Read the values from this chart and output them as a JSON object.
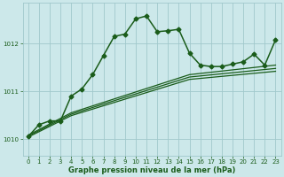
{
  "bg_color": "#cce8ea",
  "line_color": "#1a5c1a",
  "grid_color": "#a0c8cc",
  "xlabel": "Graphe pression niveau de la mer (hPa)",
  "ylabel_ticks": [
    1010,
    1011,
    1012
  ],
  "xlim": [
    -0.5,
    23.5
  ],
  "ylim": [
    1009.65,
    1012.85
  ],
  "xticks": [
    0,
    1,
    2,
    3,
    4,
    5,
    6,
    7,
    8,
    9,
    10,
    11,
    12,
    13,
    14,
    15,
    16,
    17,
    18,
    19,
    20,
    21,
    22,
    23
  ],
  "series": [
    {
      "x": [
        0,
        1,
        2,
        3,
        4,
        5,
        6,
        7,
        8,
        9,
        10,
        11,
        12,
        13,
        14,
        15,
        16,
        17,
        18,
        19,
        20,
        21,
        22,
        23
      ],
      "y": [
        1010.05,
        1010.3,
        1010.38,
        1010.38,
        1010.9,
        1011.05,
        1011.35,
        1011.75,
        1012.15,
        1012.2,
        1012.52,
        1012.58,
        1012.25,
        1012.27,
        1012.3,
        1011.8,
        1011.55,
        1011.52,
        1011.52,
        1011.57,
        1011.62,
        1011.78,
        1011.55,
        1012.08
      ],
      "marker": "D",
      "markersize": 2.5,
      "linewidth": 1.1
    },
    {
      "x": [
        0,
        4,
        15,
        23
      ],
      "y": [
        1010.08,
        1010.55,
        1011.35,
        1011.55
      ],
      "marker": null,
      "linewidth": 0.9
    },
    {
      "x": [
        0,
        4,
        15,
        23
      ],
      "y": [
        1010.06,
        1010.52,
        1011.3,
        1011.48
      ],
      "marker": null,
      "linewidth": 0.9
    },
    {
      "x": [
        0,
        4,
        15,
        23
      ],
      "y": [
        1010.04,
        1010.49,
        1011.25,
        1011.42
      ],
      "marker": null,
      "linewidth": 0.9
    }
  ]
}
